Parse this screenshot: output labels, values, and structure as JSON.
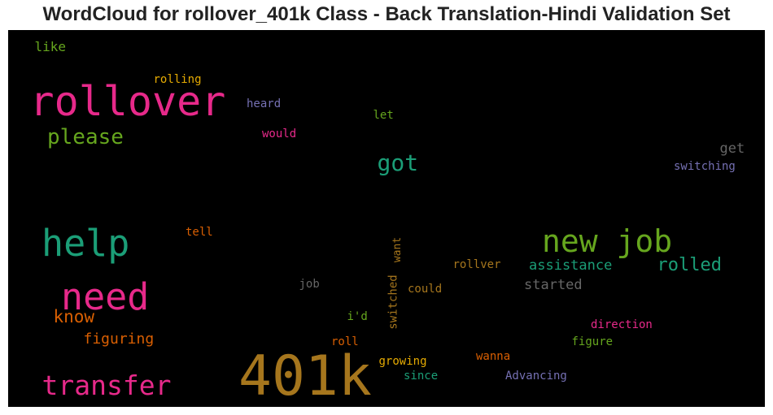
{
  "chart_data": {
    "type": "wordcloud",
    "title": "WordCloud for rollover_401k Class - Back Translation-Hindi Validation Set",
    "background": "#000000",
    "words": [
      {
        "text": "401k",
        "color": "#a6761d"
      },
      {
        "text": "rollover",
        "color": "#e7298a"
      },
      {
        "text": "help",
        "color": "#1b9e77"
      },
      {
        "text": "new job",
        "color": "#66a61e"
      },
      {
        "text": "need",
        "color": "#e7298a"
      },
      {
        "text": "transfer",
        "color": "#e7298a"
      },
      {
        "text": "please",
        "color": "#66a61e"
      },
      {
        "text": "got",
        "color": "#1b9e77"
      },
      {
        "text": "rolled",
        "color": "#1b9e77"
      },
      {
        "text": "know",
        "color": "#d95f02"
      },
      {
        "text": "figuring",
        "color": "#d95f02"
      },
      {
        "text": "assistance",
        "color": "#1b9e77"
      },
      {
        "text": "started",
        "color": "#666666"
      },
      {
        "text": "get",
        "color": "#666666"
      },
      {
        "text": "like",
        "color": "#66a61e"
      },
      {
        "text": "rolling",
        "color": "#e6ab02"
      },
      {
        "text": "heard",
        "color": "#7570b3"
      },
      {
        "text": "let",
        "color": "#66a61e"
      },
      {
        "text": "would",
        "color": "#e7298a"
      },
      {
        "text": "switching",
        "color": "#7570b3"
      },
      {
        "text": "tell",
        "color": "#d95f02"
      },
      {
        "text": "want",
        "color": "#a6761d",
        "vertical": true
      },
      {
        "text": "switched",
        "color": "#a6761d",
        "vertical": true
      },
      {
        "text": "rollver",
        "color": "#a6761d"
      },
      {
        "text": "job",
        "color": "#666666"
      },
      {
        "text": "could",
        "color": "#a6761d"
      },
      {
        "text": "i'd",
        "color": "#66a61e"
      },
      {
        "text": "direction",
        "color": "#e7298a"
      },
      {
        "text": "roll",
        "color": "#d95f02"
      },
      {
        "text": "figure",
        "color": "#66a61e"
      },
      {
        "text": "growing",
        "color": "#e6ab02"
      },
      {
        "text": "wanna",
        "color": "#d95f02"
      },
      {
        "text": "since",
        "color": "#1b9e77"
      },
      {
        "text": "Advancing",
        "color": "#7570b3"
      }
    ]
  }
}
